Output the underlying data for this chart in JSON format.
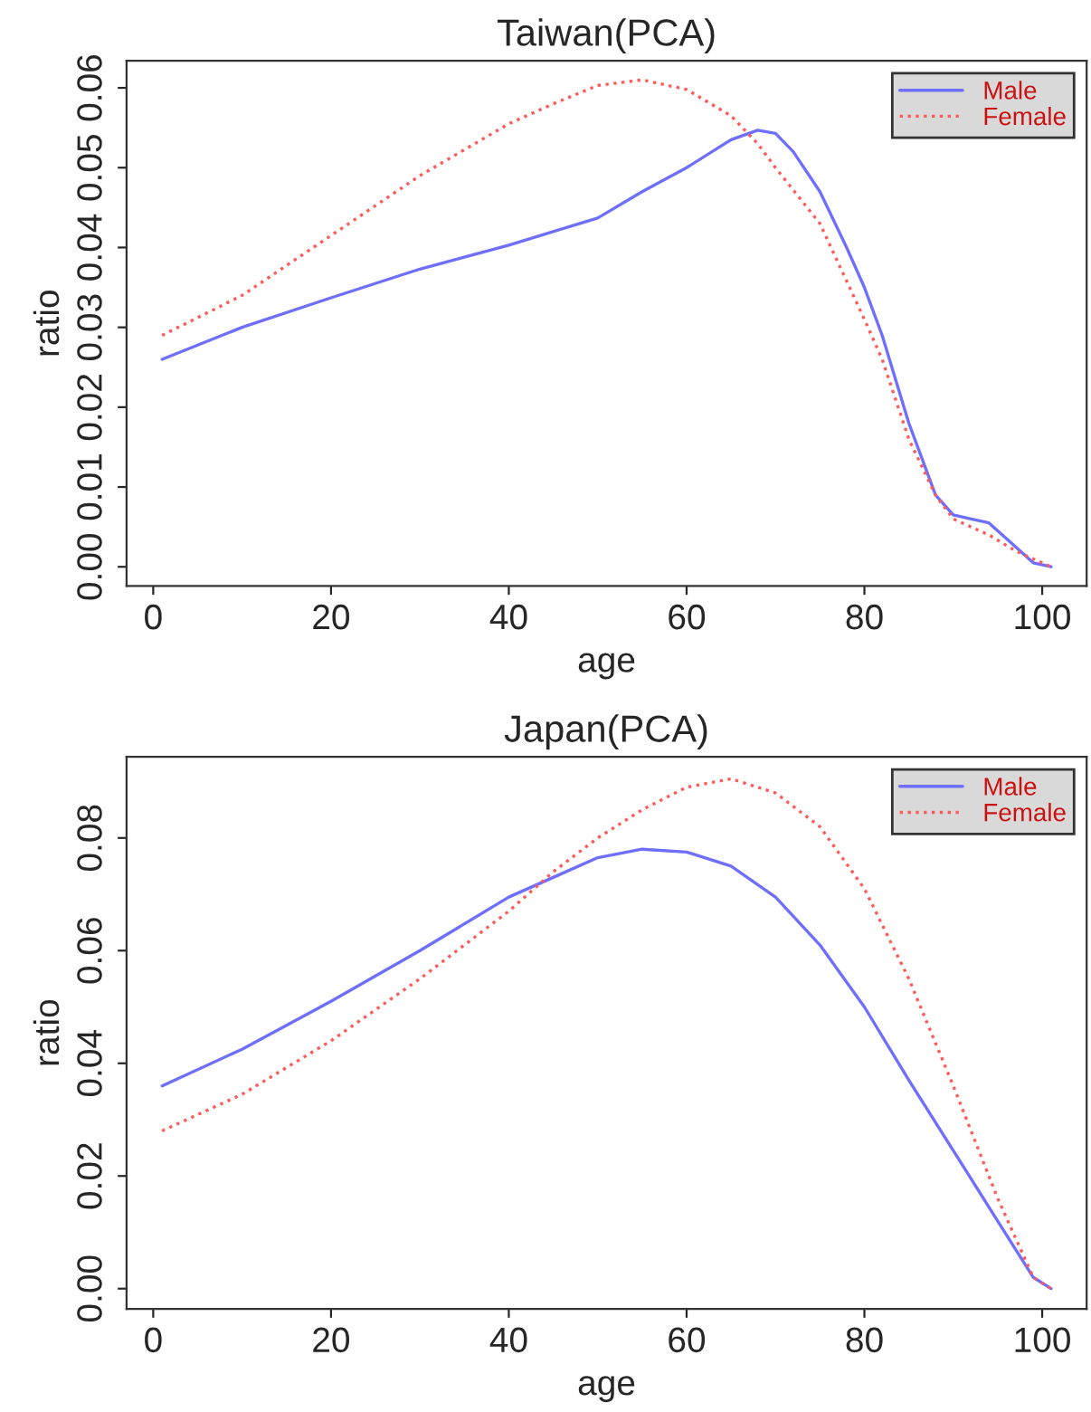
{
  "chart_data": [
    {
      "type": "line",
      "title": "Taiwan(PCA)",
      "xlabel": "age",
      "ylabel": "ratio",
      "xlim": [
        -3,
        105
      ],
      "xticks": [
        0,
        20,
        40,
        60,
        80,
        100
      ],
      "ylim": [
        -0.0024,
        0.0634
      ],
      "yticks": [
        {
          "value": 0,
          "label": "0.00"
        },
        {
          "value": 0.01,
          "label": "0.01"
        },
        {
          "value": 0.02,
          "label": "0.02"
        },
        {
          "value": 0.03,
          "label": "0.03"
        },
        {
          "value": 0.04,
          "label": "0.04"
        },
        {
          "value": 0.05,
          "label": "0.05"
        },
        {
          "value": 0.06,
          "label": "0.06"
        }
      ],
      "grid": false,
      "legend": "top right",
      "series": [
        {
          "name": "Male",
          "color": "#6e6eff",
          "line_style": "solid",
          "x": [
            1,
            10,
            20,
            30,
            40,
            50,
            55,
            60,
            65,
            68,
            70,
            72,
            75,
            78,
            80,
            82,
            85,
            88,
            90,
            92,
            94,
            96,
            99,
            101
          ],
          "values": [
            0.026,
            0.03,
            0.0337,
            0.0373,
            0.0403,
            0.0437,
            0.047,
            0.05,
            0.0535,
            0.0547,
            0.0543,
            0.052,
            0.047,
            0.04,
            0.035,
            0.029,
            0.018,
            0.009,
            0.0065,
            0.006,
            0.0055,
            0.0035,
            0.0005,
            0
          ]
        },
        {
          "name": "Female",
          "color": "#ff5a5a",
          "line_style": "dotted",
          "x": [
            1,
            10,
            20,
            30,
            40,
            45,
            50,
            55,
            60,
            65,
            68,
            70,
            75,
            80,
            82,
            85,
            88,
            90,
            94,
            97,
            101
          ],
          "values": [
            0.029,
            0.034,
            0.0415,
            0.049,
            0.0555,
            0.058,
            0.0603,
            0.061,
            0.0598,
            0.0565,
            0.053,
            0.05,
            0.043,
            0.031,
            0.026,
            0.016,
            0.009,
            0.006,
            0.004,
            0.002,
            0
          ]
        }
      ]
    },
    {
      "type": "line",
      "title": "Japan(PCA)",
      "xlabel": "age",
      "ylabel": "ratio",
      "xlim": [
        -3,
        105
      ],
      "xticks": [
        0,
        20,
        40,
        60,
        80,
        100
      ],
      "ylim": [
        -0.0036,
        0.0944
      ],
      "yticks": [
        {
          "value": 0,
          "label": "0.00"
        },
        {
          "value": 0.02,
          "label": "0.02"
        },
        {
          "value": 0.04,
          "label": "0.04"
        },
        {
          "value": 0.06,
          "label": "0.06"
        },
        {
          "value": 0.08,
          "label": "0.08"
        }
      ],
      "grid": false,
      "legend": "top right",
      "series": [
        {
          "name": "Male",
          "color": "#6e6eff",
          "line_style": "solid",
          "x": [
            1,
            10,
            20,
            30,
            40,
            45,
            50,
            55,
            60,
            65,
            70,
            75,
            80,
            85,
            90,
            95,
            99,
            101
          ],
          "values": [
            0.036,
            0.0425,
            0.051,
            0.06,
            0.0695,
            0.073,
            0.0765,
            0.078,
            0.0775,
            0.075,
            0.0695,
            0.061,
            0.05,
            0.037,
            0.0245,
            0.012,
            0.002,
            0
          ]
        },
        {
          "name": "Female",
          "color": "#ff5a5a",
          "line_style": "dotted",
          "x": [
            1,
            10,
            20,
            30,
            40,
            45,
            50,
            55,
            60,
            65,
            70,
            75,
            80,
            85,
            90,
            95,
            99,
            101
          ],
          "values": [
            0.028,
            0.0345,
            0.044,
            0.055,
            0.067,
            0.074,
            0.08,
            0.085,
            0.089,
            0.0905,
            0.088,
            0.082,
            0.071,
            0.055,
            0.036,
            0.016,
            0.002,
            0
          ]
        }
      ]
    }
  ]
}
